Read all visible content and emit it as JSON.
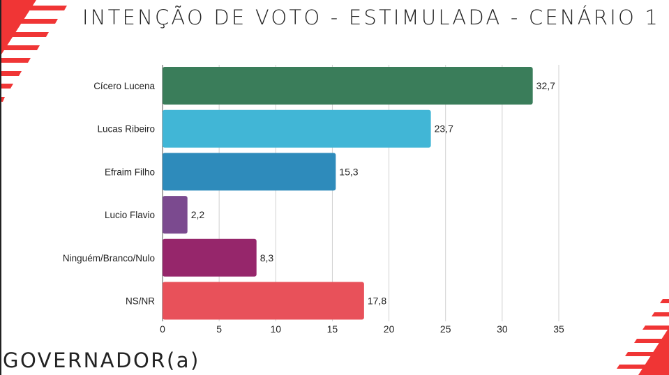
{
  "title": "INTENÇÃO DE VOTO - ESTIMULADA - CENÁRIO 1",
  "subtitle": "GOVERNADOR(a)",
  "colors": {
    "accent": "#f03535"
  },
  "chart_data": {
    "type": "bar",
    "orientation": "horizontal",
    "categories": [
      "Cícero Lucena",
      "Lucas Ribeiro",
      "Efraim Filho",
      "Lucio Flavio",
      "Ninguém/Branco/Nulo",
      "NS/NR"
    ],
    "values": [
      32.7,
      23.7,
      15.3,
      2.2,
      8.3,
      17.8
    ],
    "data_labels": [
      "32,7",
      "23,7",
      "15,3",
      "2,2",
      "8,3",
      "17,8"
    ],
    "bar_colors": [
      "#3a7d5a",
      "#41b6d6",
      "#2e8bbb",
      "#7b4a8f",
      "#96266b",
      "#e8515a"
    ],
    "xlim": [
      0,
      35
    ],
    "xticks": [
      0,
      5,
      10,
      15,
      20,
      25,
      30,
      35
    ],
    "grid": true,
    "xlabel": "",
    "ylabel": ""
  }
}
